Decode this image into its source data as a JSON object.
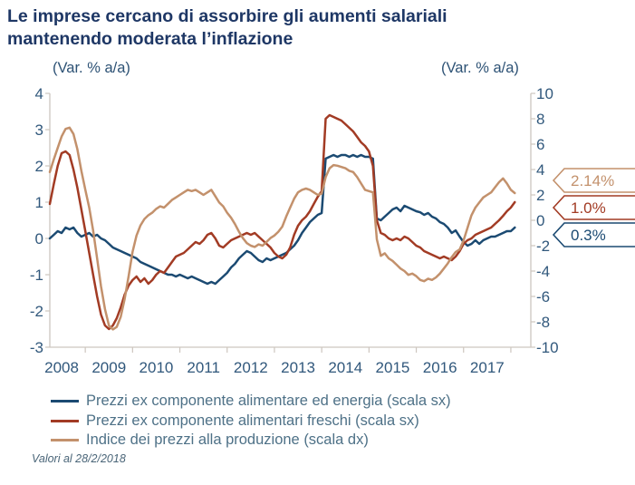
{
  "header": {
    "title_lines": [
      "Le imprese cercano di assorbire gli aumenti salariali",
      "mantenendo moderata l’inflazione"
    ]
  },
  "footnote": {
    "text": "Valori al 28/2/2018"
  },
  "colors": {
    "title": "#1e3765",
    "axis_text": "#31587c",
    "axis_line": "#cdc6bf",
    "legend_text": "#4e7187"
  },
  "chart_data": {
    "type": "line",
    "x_unit": "month",
    "x_start": "2008-04",
    "x_end": "2018-02",
    "grid": false,
    "x_tick_years": [
      2008,
      2009,
      2010,
      2011,
      2012,
      2013,
      2014,
      2015,
      2016,
      2017
    ],
    "left_axis": {
      "unit": "(Var. % a/a)",
      "min": -3,
      "max": 4,
      "ticks": [
        4,
        3,
        2,
        1,
        0,
        -1,
        -2,
        -3
      ]
    },
    "right_axis": {
      "unit": "(Var. % a/a)",
      "min": -10,
      "max": 10,
      "ticks": [
        10,
        8,
        6,
        4,
        2,
        0,
        -2,
        -4,
        -6,
        -8,
        -10
      ]
    },
    "series": [
      {
        "name": "Prezzi ex componente alimentare ed energia",
        "legend_label": "Prezzi ex componente alimentare ed energia (scala sx)",
        "scale": "sx",
        "color": "#1b4a72",
        "values": [
          0.0,
          0.1,
          0.2,
          0.15,
          0.3,
          0.25,
          0.3,
          0.15,
          0.05,
          0.1,
          0.15,
          0.05,
          0.1,
          0.0,
          -0.05,
          -0.15,
          -0.25,
          -0.3,
          -0.35,
          -0.4,
          -0.45,
          -0.5,
          -0.55,
          -0.65,
          -0.7,
          -0.75,
          -0.8,
          -0.85,
          -0.9,
          -0.95,
          -1.0,
          -1.0,
          -1.05,
          -1.0,
          -1.05,
          -1.1,
          -1.05,
          -1.1,
          -1.15,
          -1.2,
          -1.25,
          -1.2,
          -1.25,
          -1.15,
          -1.05,
          -0.95,
          -0.8,
          -0.7,
          -0.55,
          -0.45,
          -0.35,
          -0.4,
          -0.5,
          -0.6,
          -0.65,
          -0.55,
          -0.6,
          -0.55,
          -0.5,
          -0.45,
          -0.4,
          -0.3,
          -0.2,
          -0.05,
          0.15,
          0.3,
          0.45,
          0.55,
          0.65,
          0.7,
          2.2,
          2.25,
          2.3,
          2.25,
          2.3,
          2.3,
          2.25,
          2.3,
          2.25,
          2.3,
          2.25,
          2.25,
          2.2,
          0.55,
          0.5,
          0.6,
          0.7,
          0.8,
          0.85,
          0.75,
          0.9,
          0.85,
          0.8,
          0.75,
          0.72,
          0.65,
          0.7,
          0.6,
          0.55,
          0.45,
          0.4,
          0.3,
          0.15,
          0.22,
          0.05,
          -0.1,
          -0.2,
          -0.15,
          -0.05,
          -0.15,
          -0.05,
          0.0,
          0.05,
          0.05,
          0.1,
          0.15,
          0.2,
          0.2,
          0.3
        ]
      },
      {
        "name": "Prezzi ex componente alimentari freschi",
        "legend_label": "Prezzi ex componente alimentari freschi (scala sx)",
        "scale": "sx",
        "color": "#a23b24",
        "values": [
          0.95,
          1.5,
          2.0,
          2.35,
          2.4,
          2.3,
          1.9,
          1.4,
          0.8,
          0.2,
          -0.4,
          -1.0,
          -1.6,
          -2.1,
          -2.4,
          -2.5,
          -2.4,
          -2.2,
          -1.9,
          -1.55,
          -1.3,
          -1.15,
          -1.05,
          -1.2,
          -1.1,
          -1.25,
          -1.15,
          -1.0,
          -0.9,
          -0.95,
          -0.8,
          -0.65,
          -0.5,
          -0.45,
          -0.4,
          -0.3,
          -0.2,
          -0.1,
          -0.15,
          -0.05,
          0.1,
          0.15,
          0.0,
          -0.2,
          -0.25,
          -0.15,
          -0.05,
          0.0,
          0.05,
          0.1,
          0.15,
          0.1,
          0.15,
          0.05,
          -0.05,
          -0.15,
          -0.25,
          -0.4,
          -0.5,
          -0.55,
          -0.45,
          -0.25,
          0.1,
          0.35,
          0.5,
          0.6,
          0.75,
          0.95,
          1.15,
          1.3,
          3.3,
          3.4,
          3.35,
          3.3,
          3.25,
          3.15,
          3.05,
          2.95,
          2.8,
          2.65,
          2.55,
          2.4,
          2.0,
          0.5,
          0.15,
          0.1,
          0.0,
          -0.05,
          0.0,
          -0.05,
          0.05,
          0.0,
          -0.1,
          -0.2,
          -0.25,
          -0.35,
          -0.4,
          -0.45,
          -0.5,
          -0.55,
          -0.5,
          -0.55,
          -0.6,
          -0.5,
          -0.35,
          -0.15,
          -0.05,
          0.0,
          0.1,
          0.15,
          0.2,
          0.25,
          0.3,
          0.4,
          0.5,
          0.62,
          0.75,
          0.85,
          1.0
        ]
      },
      {
        "name": "Indice dei prezzi alla produzione",
        "legend_label": "Indice dei prezzi alla produzione (scala dx)",
        "scale": "dx",
        "color": "#c3916c",
        "values": [
          3.8,
          4.8,
          5.7,
          6.6,
          7.2,
          7.3,
          6.8,
          5.6,
          3.9,
          2.4,
          1.0,
          -0.8,
          -3.0,
          -5.2,
          -7.0,
          -8.3,
          -8.6,
          -8.4,
          -7.6,
          -6.2,
          -4.4,
          -2.5,
          -1.2,
          -0.4,
          0.1,
          0.4,
          0.6,
          0.9,
          1.1,
          1.0,
          1.3,
          1.6,
          1.8,
          2.0,
          2.2,
          2.4,
          2.3,
          2.4,
          2.2,
          2.0,
          2.2,
          2.4,
          1.9,
          1.4,
          1.1,
          0.6,
          0.2,
          -0.3,
          -0.9,
          -1.4,
          -1.8,
          -2.0,
          -2.1,
          -1.9,
          -2.0,
          -1.7,
          -1.4,
          -1.2,
          -0.9,
          -0.5,
          0.3,
          1.0,
          1.7,
          2.2,
          2.4,
          2.5,
          2.4,
          2.2,
          2.0,
          2.1,
          3.4,
          4.1,
          4.35,
          4.3,
          4.2,
          4.1,
          3.9,
          3.8,
          3.4,
          2.9,
          2.4,
          2.3,
          2.2,
          -1.5,
          -2.8,
          -2.6,
          -3.0,
          -3.2,
          -3.5,
          -3.8,
          -4.0,
          -4.3,
          -4.2,
          -4.4,
          -4.7,
          -4.8,
          -4.6,
          -4.7,
          -4.5,
          -4.2,
          -3.8,
          -3.4,
          -2.9,
          -2.5,
          -2.3,
          -1.6,
          -0.6,
          0.4,
          1.0,
          1.4,
          1.8,
          2.0,
          2.2,
          2.6,
          3.0,
          3.3,
          2.9,
          2.4,
          2.14
        ]
      }
    ],
    "end_callouts": [
      {
        "series_index": 2,
        "label": "2.14%"
      },
      {
        "series_index": 1,
        "label": "1.0%"
      },
      {
        "series_index": 0,
        "label": "0.3%"
      }
    ]
  }
}
